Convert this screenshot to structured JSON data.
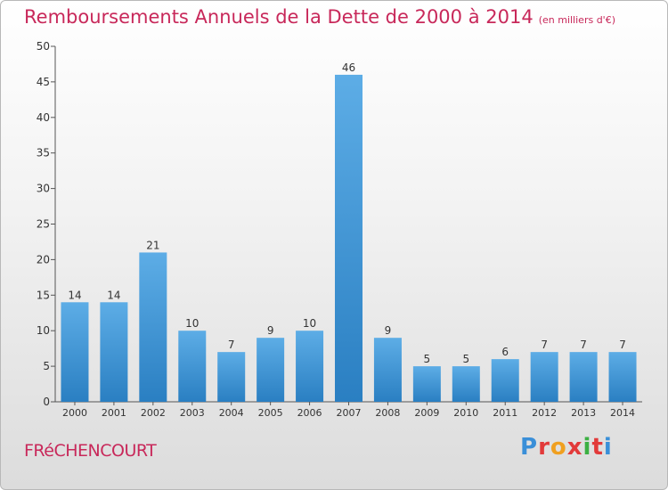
{
  "chart_data": {
    "type": "bar",
    "title": "Remboursements Annuels de la Dette de 2000 à 2014",
    "subtitle": "(en milliers d'€)",
    "categories": [
      "2000",
      "2001",
      "2002",
      "2003",
      "2004",
      "2005",
      "2006",
      "2007",
      "2008",
      "2009",
      "2010",
      "2011",
      "2012",
      "2013",
      "2014"
    ],
    "values": [
      14,
      14,
      21,
      10,
      7,
      9,
      10,
      46,
      9,
      5,
      5,
      6,
      7,
      7,
      7
    ],
    "ylim": [
      0,
      50
    ],
    "yticks": [
      0,
      5,
      10,
      15,
      20,
      25,
      30,
      35,
      40,
      45,
      50
    ],
    "xlabel": "",
    "ylabel": "",
    "grid": false,
    "data_labels": true,
    "colors": {
      "bar_light": "#5dade6",
      "bar_dark": "#2a7fc2",
      "title": "#c8285a",
      "axis": "#555555"
    }
  },
  "footer": {
    "commune": "FRéCHENCOURT",
    "brand": "Proxiti"
  },
  "brand_colors": [
    "#3a8fd8",
    "#e23a3a",
    "#f0a020",
    "#e23a3a",
    "#3cb043",
    "#e23a3a",
    "#3a8fd8"
  ]
}
